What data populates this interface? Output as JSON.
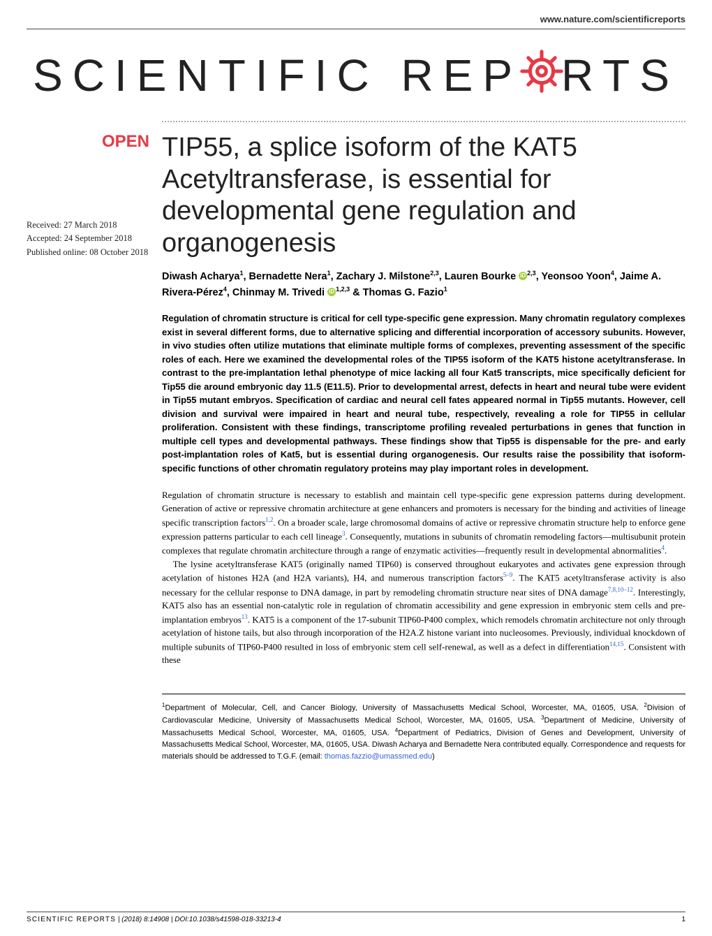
{
  "header": {
    "url": "www.nature.com/scientificreports"
  },
  "logo": {
    "part1": "SCIENTIFIC ",
    "part2": "REP",
    "part3": "RTS",
    "gear_color": "#e63946"
  },
  "badge": {
    "open": "OPEN"
  },
  "dates": {
    "received": "Received: 27 March 2018",
    "accepted": "Accepted: 24 September 2018",
    "published": "Published online: 08 October 2018"
  },
  "title": "TIP55, a splice isoform of the KAT5 Acetyltransferase, is essential for developmental gene regulation and organogenesis",
  "authors_html": "Diwash Acharya<sup>1</sup>, Bernadette Nera<sup>1</sup>, Zachary J. Milstone<sup>2,3</sup>, Lauren Bourke <span class='orcid' data-name='orcid-icon'></span><sup>2,3</sup>, Yeonsoo Yoon<sup>4</sup>, Jaime A. Rivera-Pérez<sup>4</sup>, Chinmay M. Trivedi <span class='orcid' data-name='orcid-icon'></span><sup>1,2,3</sup> & Thomas G. Fazio<sup>1</sup>",
  "abstract": "Regulation of chromatin structure is critical for cell type-specific gene expression. Many chromatin regulatory complexes exist in several different forms, due to alternative splicing and differential incorporation of accessory subunits. However, in vivo studies often utilize mutations that eliminate multiple forms of complexes, preventing assessment of the specific roles of each. Here we examined the developmental roles of the TIP55 isoform of the KAT5 histone acetyltransferase. In contrast to the pre-implantation lethal phenotype of mice lacking all four Kat5 transcripts, mice specifically deficient for Tip55 die around embryonic day 11.5 (E11.5). Prior to developmental arrest, defects in heart and neural tube were evident in Tip55 mutant embryos. Specification of cardiac and neural cell fates appeared normal in Tip55 mutants. However, cell division and survival were impaired in heart and neural tube, respectively, revealing a role for TIP55 in cellular proliferation. Consistent with these findings, transcriptome profiling revealed perturbations in genes that function in multiple cell types and developmental pathways. These findings show that Tip55 is dispensable for the pre- and early post-implantation roles of Kat5, but is essential during organogenesis. Our results raise the possibility that isoform-specific functions of other chromatin regulatory proteins may play important roles in development.",
  "body": {
    "p1": "Regulation of chromatin structure is necessary to establish and maintain cell type-specific gene expression patterns during development. Generation of active or repressive chromatin architecture at gene enhancers and promoters is necessary for the binding and activities of lineage specific transcription factors<sup>1,2</sup>. On a broader scale, large chromosomal domains of active or repressive chromatin structure help to enforce gene expression patterns particular to each cell lineage<sup>3</sup>. Consequently, mutations in subunits of chromatin remodeling factors—multisubunit protein complexes that regulate chromatin architecture through a range of enzymatic activities—frequently result in developmental abnormalities<sup>4</sup>.",
    "p2": "The lysine acetyltransferase KAT5 (originally named TIP60) is conserved throughout eukaryotes and activates gene expression through acetylation of histones H2A (and H2A variants), H4, and numerous transcription factors<sup>5–9</sup>. The KAT5 acetyltransferase activity is also necessary for the cellular response to DNA damage, in part by remodeling chromatin structure near sites of DNA damage<sup>7,8,10–12</sup>. Interestingly, KAT5 also has an essential non-catalytic role in regulation of chromatin accessibility and gene expression in embryonic stem cells and pre-implantation embryos<sup>13</sup>. KAT5 is a component of the 17-subunit TIP60-P400 complex, which remodels chromatin architecture not only through acetylation of histone tails, but also through incorporation of the H2A.Z histone variant into nucleosomes. Previously, individual knockdown of multiple subunits of TIP60-P400 resulted in loss of embryonic stem cell self-renewal, as well as a defect in differentiation<sup>14,15</sup>. Consistent with these"
  },
  "affiliations_html": "<sup>1</sup>Department of Molecular, Cell, and Cancer Biology, University of Massachusetts Medical School, Worcester, MA, 01605, USA. <sup>2</sup>Division of Cardiovascular Medicine, University of Massachusetts Medical School, Worcester, MA, 01605, USA. <sup>3</sup>Department of Medicine, University of Massachusetts Medical School, Worcester, MA, 01605, USA. <sup>4</sup>Department of Pediatrics, Division of Genes and Development, University of Massachusetts Medical School, Worcester, MA, 01605, USA. Diwash Acharya and Bernadette Nera contributed equally. Correspondence and requests for materials should be addressed to T.G.F. (email: <span class='email'>thomas.fazzio@umassmed.edu</span>)",
  "footer": {
    "journal": "SCIENTIFIC REPORTS",
    "citation": " |  (2018) 8:14908  | DOI:10.1038/s41598-018-33213-4",
    "page": "1"
  }
}
